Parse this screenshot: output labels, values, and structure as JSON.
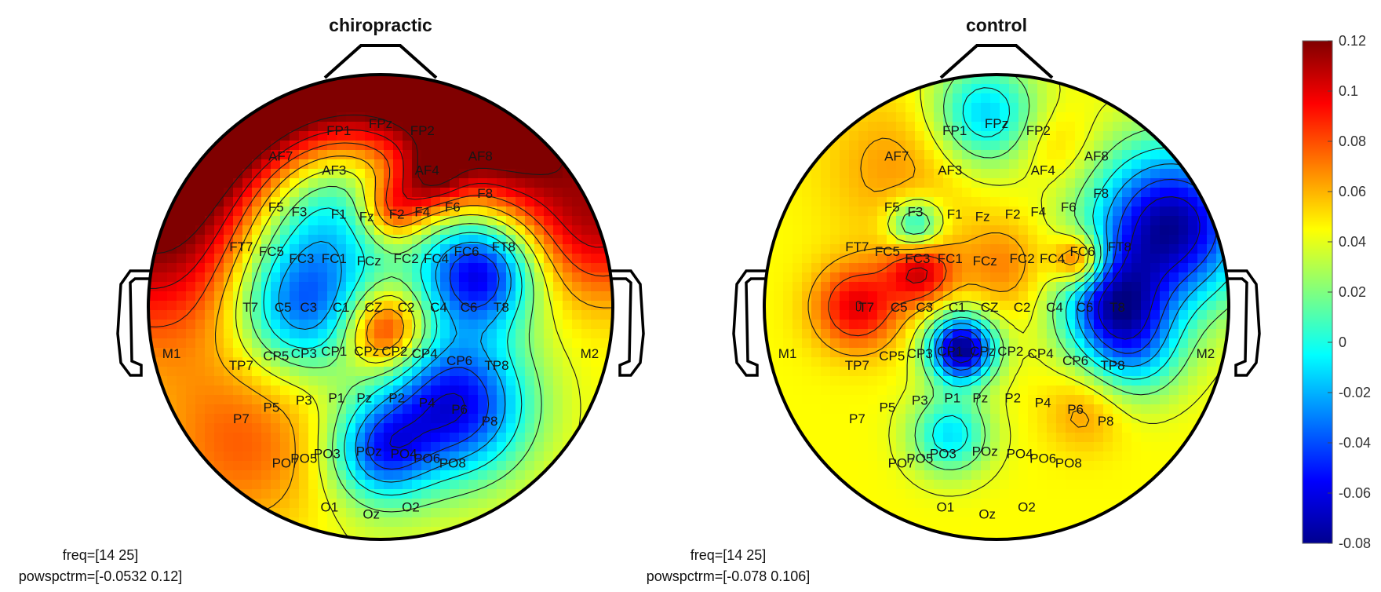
{
  "chart_data": {
    "type": "heatmap",
    "subtype": "eeg-topographic-map",
    "colormap": "jet",
    "colorbar": {
      "position": "right",
      "range": [
        -0.08,
        0.12
      ],
      "ticks": [
        {
          "value": 0.12,
          "label": "0.12"
        },
        {
          "value": 0.1,
          "label": "0.1"
        },
        {
          "value": 0.08,
          "label": "0.08"
        },
        {
          "value": 0.06,
          "label": "0.06"
        },
        {
          "value": 0.04,
          "label": "0.04"
        },
        {
          "value": 0.02,
          "label": "0.02"
        },
        {
          "value": 0,
          "label": "0"
        },
        {
          "value": -0.02,
          "label": "-0.02"
        },
        {
          "value": -0.04,
          "label": "-0.04"
        },
        {
          "value": -0.06,
          "label": "-0.06"
        },
        {
          "value": -0.08,
          "label": "-0.08"
        }
      ]
    },
    "panels": [
      {
        "title": "chiropractic",
        "freq_label": "freq=[14 25]",
        "range_label": "powspctrm=[-0.0532 0.12]",
        "blobs": [
          {
            "x": -0.95,
            "y": 0.45,
            "s": 0.4,
            "v": 0.13
          },
          {
            "x": -0.65,
            "y": 0.85,
            "s": 0.3,
            "v": 0.12
          },
          {
            "x": -0.25,
            "y": 1.0,
            "s": 0.28,
            "v": 0.11
          },
          {
            "x": 0.25,
            "y": 1.0,
            "s": 0.3,
            "v": 0.12
          },
          {
            "x": 0.6,
            "y": 0.8,
            "s": 0.28,
            "v": 0.12
          },
          {
            "x": 0.95,
            "y": 0.35,
            "s": 0.22,
            "v": 0.1
          },
          {
            "x": -0.28,
            "y": 0.45,
            "s": 0.28,
            "v": -0.035
          },
          {
            "x": -0.35,
            "y": 0.0,
            "s": 0.2,
            "v": -0.03
          },
          {
            "x": 0.42,
            "y": 0.15,
            "s": 0.17,
            "v": -0.06
          },
          {
            "x": 0.32,
            "y": -0.42,
            "s": 0.22,
            "v": -0.06
          },
          {
            "x": 0.0,
            "y": -0.62,
            "s": 0.15,
            "v": -0.03
          },
          {
            "x": 0.02,
            "y": -0.1,
            "s": 0.12,
            "v": 0.11
          },
          {
            "x": 0.05,
            "y": 0.42,
            "s": 0.1,
            "v": 0.1
          },
          {
            "x": 0.22,
            "y": 0.55,
            "s": 0.1,
            "v": 0.09
          },
          {
            "x": -0.6,
            "y": -0.6,
            "s": 0.25,
            "v": 0.075
          },
          {
            "x": 0.0,
            "y": -0.98,
            "s": 0.2,
            "v": 0.04
          }
        ],
        "electrodes": [
          {
            "name": "FP1",
            "x": -0.18,
            "y": 0.76
          },
          {
            "name": "FPz",
            "x": 0.0,
            "y": 0.79
          },
          {
            "name": "FP2",
            "x": 0.18,
            "y": 0.76
          },
          {
            "name": "AF7",
            "x": -0.43,
            "y": 0.65
          },
          {
            "name": "AF3",
            "x": -0.2,
            "y": 0.59
          },
          {
            "name": "AF4",
            "x": 0.2,
            "y": 0.59
          },
          {
            "name": "AF8",
            "x": 0.43,
            "y": 0.65
          },
          {
            "name": "F5",
            "x": -0.45,
            "y": 0.43
          },
          {
            "name": "F3",
            "x": -0.35,
            "y": 0.41
          },
          {
            "name": "F1",
            "x": -0.18,
            "y": 0.4
          },
          {
            "name": "Fz",
            "x": -0.06,
            "y": 0.39
          },
          {
            "name": "F2",
            "x": 0.07,
            "y": 0.4
          },
          {
            "name": "F4",
            "x": 0.18,
            "y": 0.41
          },
          {
            "name": "F6",
            "x": 0.31,
            "y": 0.43
          },
          {
            "name": "F8",
            "x": 0.45,
            "y": 0.49
          },
          {
            "name": "FT7",
            "x": -0.6,
            "y": 0.26
          },
          {
            "name": "FC5",
            "x": -0.47,
            "y": 0.24
          },
          {
            "name": "FC3",
            "x": -0.34,
            "y": 0.21
          },
          {
            "name": "FC1",
            "x": -0.2,
            "y": 0.21
          },
          {
            "name": "FCz",
            "x": -0.05,
            "y": 0.2
          },
          {
            "name": "FC2",
            "x": 0.11,
            "y": 0.21
          },
          {
            "name": "FC4",
            "x": 0.24,
            "y": 0.21
          },
          {
            "name": "FC6",
            "x": 0.37,
            "y": 0.24
          },
          {
            "name": "FT8",
            "x": 0.53,
            "y": 0.26
          },
          {
            "name": "T7",
            "x": -0.56,
            "y": 0.0
          },
          {
            "name": "C5",
            "x": -0.42,
            "y": 0.0
          },
          {
            "name": "C3",
            "x": -0.31,
            "y": 0.0
          },
          {
            "name": "C1",
            "x": -0.17,
            "y": 0.0
          },
          {
            "name": "CZ",
            "x": -0.03,
            "y": 0.0
          },
          {
            "name": "C2",
            "x": 0.11,
            "y": 0.0
          },
          {
            "name": "C4",
            "x": 0.25,
            "y": 0.0
          },
          {
            "name": "C6",
            "x": 0.38,
            "y": 0.0
          },
          {
            "name": "T8",
            "x": 0.52,
            "y": 0.0
          },
          {
            "name": "M1",
            "x": -0.9,
            "y": -0.2
          },
          {
            "name": "M2",
            "x": 0.9,
            "y": -0.2
          },
          {
            "name": "TP7",
            "x": -0.6,
            "y": -0.25
          },
          {
            "name": "CP5",
            "x": -0.45,
            "y": -0.21
          },
          {
            "name": "CP3",
            "x": -0.33,
            "y": -0.2
          },
          {
            "name": "CP1",
            "x": -0.2,
            "y": -0.19
          },
          {
            "name": "CPz",
            "x": -0.06,
            "y": -0.19
          },
          {
            "name": "CP2",
            "x": 0.06,
            "y": -0.19
          },
          {
            "name": "CP4",
            "x": 0.19,
            "y": -0.2
          },
          {
            "name": "CP6",
            "x": 0.34,
            "y": -0.23
          },
          {
            "name": "TP8",
            "x": 0.5,
            "y": -0.25
          },
          {
            "name": "P7",
            "x": -0.6,
            "y": -0.48
          },
          {
            "name": "P5",
            "x": -0.47,
            "y": -0.43
          },
          {
            "name": "P3",
            "x": -0.33,
            "y": -0.4
          },
          {
            "name": "P1",
            "x": -0.19,
            "y": -0.39
          },
          {
            "name": "Pz",
            "x": -0.07,
            "y": -0.39
          },
          {
            "name": "P2",
            "x": 0.07,
            "y": -0.39
          },
          {
            "name": "P4",
            "x": 0.2,
            "y": -0.41
          },
          {
            "name": "P6",
            "x": 0.34,
            "y": -0.44
          },
          {
            "name": "P8",
            "x": 0.47,
            "y": -0.49
          },
          {
            "name": "PO7",
            "x": -0.41,
            "y": -0.67
          },
          {
            "name": "PO5",
            "x": -0.33,
            "y": -0.65
          },
          {
            "name": "PO3",
            "x": -0.23,
            "y": -0.63
          },
          {
            "name": "POz",
            "x": -0.05,
            "y": -0.62
          },
          {
            "name": "PO4",
            "x": 0.1,
            "y": -0.63
          },
          {
            "name": "PO6",
            "x": 0.2,
            "y": -0.65
          },
          {
            "name": "PO8",
            "x": 0.31,
            "y": -0.67
          },
          {
            "name": "O1",
            "x": -0.22,
            "y": -0.86
          },
          {
            "name": "Oz",
            "x": -0.04,
            "y": -0.89
          },
          {
            "name": "O2",
            "x": 0.13,
            "y": -0.86
          }
        ]
      },
      {
        "title": "control",
        "freq_label": "freq=[14 25]",
        "range_label": "powspctrm=[-0.078 0.106]",
        "blobs": [
          {
            "x": -0.6,
            "y": 0.0,
            "s": 0.13,
            "v": 0.1
          },
          {
            "x": -0.33,
            "y": 0.15,
            "s": 0.1,
            "v": 0.1
          },
          {
            "x": -0.42,
            "y": 0.6,
            "s": 0.22,
            "v": 0.065
          },
          {
            "x": 0.25,
            "y": 0.7,
            "s": 0.12,
            "v": 0.06
          },
          {
            "x": 0.03,
            "y": 0.18,
            "s": 0.14,
            "v": 0.07
          },
          {
            "x": 0.36,
            "y": 0.2,
            "s": 0.08,
            "v": 0.11
          },
          {
            "x": 0.75,
            "y": 0.35,
            "s": 0.24,
            "v": -0.075
          },
          {
            "x": 0.5,
            "y": 0.0,
            "s": 0.16,
            "v": -0.04
          },
          {
            "x": -0.15,
            "y": -0.18,
            "s": 0.1,
            "v": -0.08
          },
          {
            "x": -0.05,
            "y": 0.83,
            "s": 0.16,
            "v": -0.015
          },
          {
            "x": -0.35,
            "y": 0.35,
            "s": 0.08,
            "v": -0.01
          },
          {
            "x": 0.38,
            "y": -0.45,
            "s": 0.12,
            "v": 0.065
          },
          {
            "x": -0.2,
            "y": -0.55,
            "s": 0.12,
            "v": -0.01
          },
          {
            "x": 0.6,
            "y": -0.2,
            "s": 0.15,
            "v": 0.0
          }
        ],
        "electrodes": [
          {
            "name": "FP1",
            "x": -0.18,
            "y": 0.76
          },
          {
            "name": "FPz",
            "x": 0.0,
            "y": 0.79
          },
          {
            "name": "FP2",
            "x": 0.18,
            "y": 0.76
          },
          {
            "name": "AF7",
            "x": -0.43,
            "y": 0.65
          },
          {
            "name": "AF3",
            "x": -0.2,
            "y": 0.59
          },
          {
            "name": "AF4",
            "x": 0.2,
            "y": 0.59
          },
          {
            "name": "AF8",
            "x": 0.43,
            "y": 0.65
          },
          {
            "name": "F5",
            "x": -0.45,
            "y": 0.43
          },
          {
            "name": "F3",
            "x": -0.35,
            "y": 0.41
          },
          {
            "name": "F1",
            "x": -0.18,
            "y": 0.4
          },
          {
            "name": "Fz",
            "x": -0.06,
            "y": 0.39
          },
          {
            "name": "F2",
            "x": 0.07,
            "y": 0.4
          },
          {
            "name": "F4",
            "x": 0.18,
            "y": 0.41
          },
          {
            "name": "F6",
            "x": 0.31,
            "y": 0.43
          },
          {
            "name": "F8",
            "x": 0.45,
            "y": 0.49
          },
          {
            "name": "FT7",
            "x": -0.6,
            "y": 0.26
          },
          {
            "name": "FC5",
            "x": -0.47,
            "y": 0.24
          },
          {
            "name": "FC3",
            "x": -0.34,
            "y": 0.21
          },
          {
            "name": "FC1",
            "x": -0.2,
            "y": 0.21
          },
          {
            "name": "FCz",
            "x": -0.05,
            "y": 0.2
          },
          {
            "name": "FC2",
            "x": 0.11,
            "y": 0.21
          },
          {
            "name": "FC4",
            "x": 0.24,
            "y": 0.21
          },
          {
            "name": "FC6",
            "x": 0.37,
            "y": 0.24
          },
          {
            "name": "FT8",
            "x": 0.53,
            "y": 0.26
          },
          {
            "name": "T7",
            "x": -0.56,
            "y": 0.0
          },
          {
            "name": "C5",
            "x": -0.42,
            "y": 0.0
          },
          {
            "name": "C3",
            "x": -0.31,
            "y": 0.0
          },
          {
            "name": "C1",
            "x": -0.17,
            "y": 0.0
          },
          {
            "name": "CZ",
            "x": -0.03,
            "y": 0.0
          },
          {
            "name": "C2",
            "x": 0.11,
            "y": 0.0
          },
          {
            "name": "C4",
            "x": 0.25,
            "y": 0.0
          },
          {
            "name": "C6",
            "x": 0.38,
            "y": 0.0
          },
          {
            "name": "T8",
            "x": 0.52,
            "y": 0.0
          },
          {
            "name": "M1",
            "x": -0.9,
            "y": -0.2
          },
          {
            "name": "M2",
            "x": 0.9,
            "y": -0.2
          },
          {
            "name": "TP7",
            "x": -0.6,
            "y": -0.25
          },
          {
            "name": "CP5",
            "x": -0.45,
            "y": -0.21
          },
          {
            "name": "CP3",
            "x": -0.33,
            "y": -0.2
          },
          {
            "name": "CP1",
            "x": -0.2,
            "y": -0.19
          },
          {
            "name": "CPz",
            "x": -0.06,
            "y": -0.19
          },
          {
            "name": "CP2",
            "x": 0.06,
            "y": -0.19
          },
          {
            "name": "CP4",
            "x": 0.19,
            "y": -0.2
          },
          {
            "name": "CP6",
            "x": 0.34,
            "y": -0.23
          },
          {
            "name": "TP8",
            "x": 0.5,
            "y": -0.25
          },
          {
            "name": "P7",
            "x": -0.6,
            "y": -0.48
          },
          {
            "name": "P5",
            "x": -0.47,
            "y": -0.43
          },
          {
            "name": "P3",
            "x": -0.33,
            "y": -0.4
          },
          {
            "name": "P1",
            "x": -0.19,
            "y": -0.39
          },
          {
            "name": "Pz",
            "x": -0.07,
            "y": -0.39
          },
          {
            "name": "P2",
            "x": 0.07,
            "y": -0.39
          },
          {
            "name": "P4",
            "x": 0.2,
            "y": -0.41
          },
          {
            "name": "P6",
            "x": 0.34,
            "y": -0.44
          },
          {
            "name": "P8",
            "x": 0.47,
            "y": -0.49
          },
          {
            "name": "PO7",
            "x": -0.41,
            "y": -0.67
          },
          {
            "name": "PO5",
            "x": -0.33,
            "y": -0.65
          },
          {
            "name": "PO3",
            "x": -0.23,
            "y": -0.63
          },
          {
            "name": "POz",
            "x": -0.05,
            "y": -0.62
          },
          {
            "name": "PO4",
            "x": 0.1,
            "y": -0.63
          },
          {
            "name": "PO6",
            "x": 0.2,
            "y": -0.65
          },
          {
            "name": "PO8",
            "x": 0.31,
            "y": -0.67
          },
          {
            "name": "O1",
            "x": -0.22,
            "y": -0.86
          },
          {
            "name": "Oz",
            "x": -0.04,
            "y": -0.89
          },
          {
            "name": "O2",
            "x": 0.13,
            "y": -0.86
          }
        ]
      }
    ]
  }
}
